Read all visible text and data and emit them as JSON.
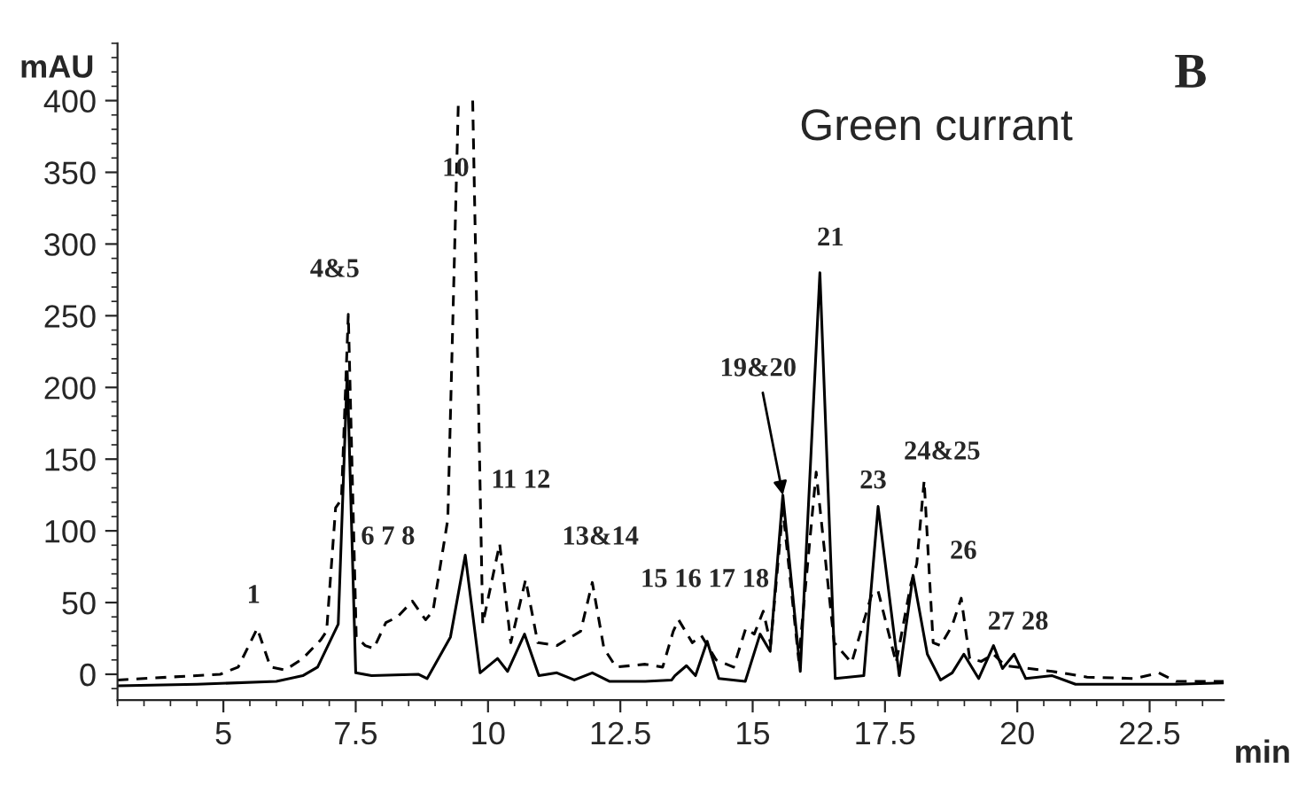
{
  "chart_data": {
    "type": "line",
    "title": "Green currant",
    "xlabel": "min",
    "ylabel": "mAU",
    "xlim": [
      3,
      23.9
    ],
    "ylim": [
      -18,
      440
    ],
    "xticks": [
      5,
      7.5,
      10,
      12.5,
      15,
      17.5,
      20,
      22.5
    ],
    "yticks": [
      0,
      50,
      100,
      150,
      200,
      250,
      300,
      350,
      400
    ],
    "grid": false,
    "legend": false,
    "marker": "none",
    "series": [
      {
        "color": "#000000",
        "line_style": "solid",
        "x": [
          3,
          4.5,
          6,
          6.5,
          6.78,
          7.17,
          7.34,
          7.5,
          7.8,
          8.68,
          8.85,
          9.29,
          9.57,
          9.85,
          10.18,
          10.37,
          10.69,
          10.96,
          11.3,
          11.63,
          11.97,
          12.3,
          12.97,
          13.47,
          13.53,
          13.75,
          13.92,
          14.14,
          14.36,
          14.86,
          15.14,
          15.33,
          15.57,
          15.9,
          16.27,
          16.56,
          17.1,
          17.37,
          17.77,
          18.03,
          18.3,
          18.55,
          18.77,
          18.99,
          19.27,
          19.55,
          19.72,
          19.94,
          20.16,
          20.66,
          21.1,
          23.0,
          23.9
        ],
        "values": [
          -8,
          -7,
          -5,
          -1,
          5,
          35,
          211,
          1,
          -1,
          0,
          -3,
          26,
          83,
          1,
          11,
          2,
          28,
          -1,
          1,
          -4,
          1,
          -5,
          -5,
          -4,
          -1,
          6,
          -1,
          23,
          -3,
          -5,
          28,
          16,
          125,
          2,
          280,
          -3,
          -1,
          117,
          -1,
          69,
          14,
          -4,
          1,
          14,
          -3,
          20,
          4,
          14,
          -3,
          -1,
          -7,
          -7,
          -6
        ]
      },
      {
        "color": "#000000",
        "line_style": "dashed",
        "x": [
          3,
          4.94,
          5.28,
          5.64,
          5.89,
          6.17,
          6.5,
          6.84,
          6.95,
          7.12,
          7.23,
          7.36,
          7.51,
          7.68,
          7.84,
          8.07,
          8.29,
          8.57,
          8.82,
          8.96,
          9.24,
          9.44,
          9.6,
          9.71,
          9.9,
          10.22,
          10.43,
          10.71,
          10.94,
          11.3,
          11.75,
          11.97,
          12.19,
          12.42,
          12.97,
          13.3,
          13.5,
          13.6,
          13.86,
          14.03,
          14.31,
          14.64,
          14.87,
          15.03,
          15.2,
          15.34,
          15.57,
          15.87,
          16.2,
          16.54,
          16.87,
          17.26,
          17.37,
          17.71,
          17.99,
          18.1,
          18.24,
          18.41,
          18.55,
          18.77,
          18.94,
          19.1,
          19.32,
          19.55,
          19.77,
          20.66,
          21.32,
          22.22,
          22.67,
          23.0,
          23.9
        ],
        "values": [
          -4,
          0,
          5,
          32,
          5,
          3,
          11,
          24,
          30,
          116,
          122,
          251,
          26,
          20,
          18,
          36,
          40,
          51,
          38,
          44,
          108,
          400,
          null,
          400,
          35,
          91,
          22,
          66,
          22,
          20,
          30,
          64,
          18,
          5,
          7,
          5,
          30,
          38,
          22,
          27,
          10,
          5,
          32,
          28,
          44,
          21,
          115,
          10,
          141,
          22,
          8,
          57,
          58,
          8,
          63,
          77,
          135,
          22,
          20,
          34,
          53,
          11,
          9,
          14,
          6,
          2,
          -2,
          -3,
          1,
          -5,
          -5
        ]
      }
    ],
    "annotations": [
      "B",
      {
        "text": "1",
        "x": 5.64,
        "y": 32
      },
      {
        "text": "4&5",
        "x": 7.36,
        "y": 251
      },
      {
        "text": "6 7 8",
        "x": 8.57,
        "y": 51
      },
      {
        "text": "10",
        "x": 9.39,
        "y": 352
      },
      {
        "text": "11 12",
        "x": 10.22,
        "y": 91
      },
      {
        "text": "13&14",
        "x": 11.97,
        "y": 64
      },
      {
        "text": "15 16 17 18",
        "x": 13.6,
        "y": 38
      },
      {
        "text": "19&20",
        "x": 15.57,
        "y": 125
      },
      {
        "text": "21",
        "x": 16.27,
        "y": 280
      },
      {
        "text": "23",
        "x": 17.37,
        "y": 117
      },
      {
        "text": "24&25",
        "x": 18.24,
        "y": 135
      },
      {
        "text": "26",
        "x": 18.94,
        "y": 53
      },
      {
        "text": "27 28",
        "x": 19.55,
        "y": 20
      }
    ]
  }
}
